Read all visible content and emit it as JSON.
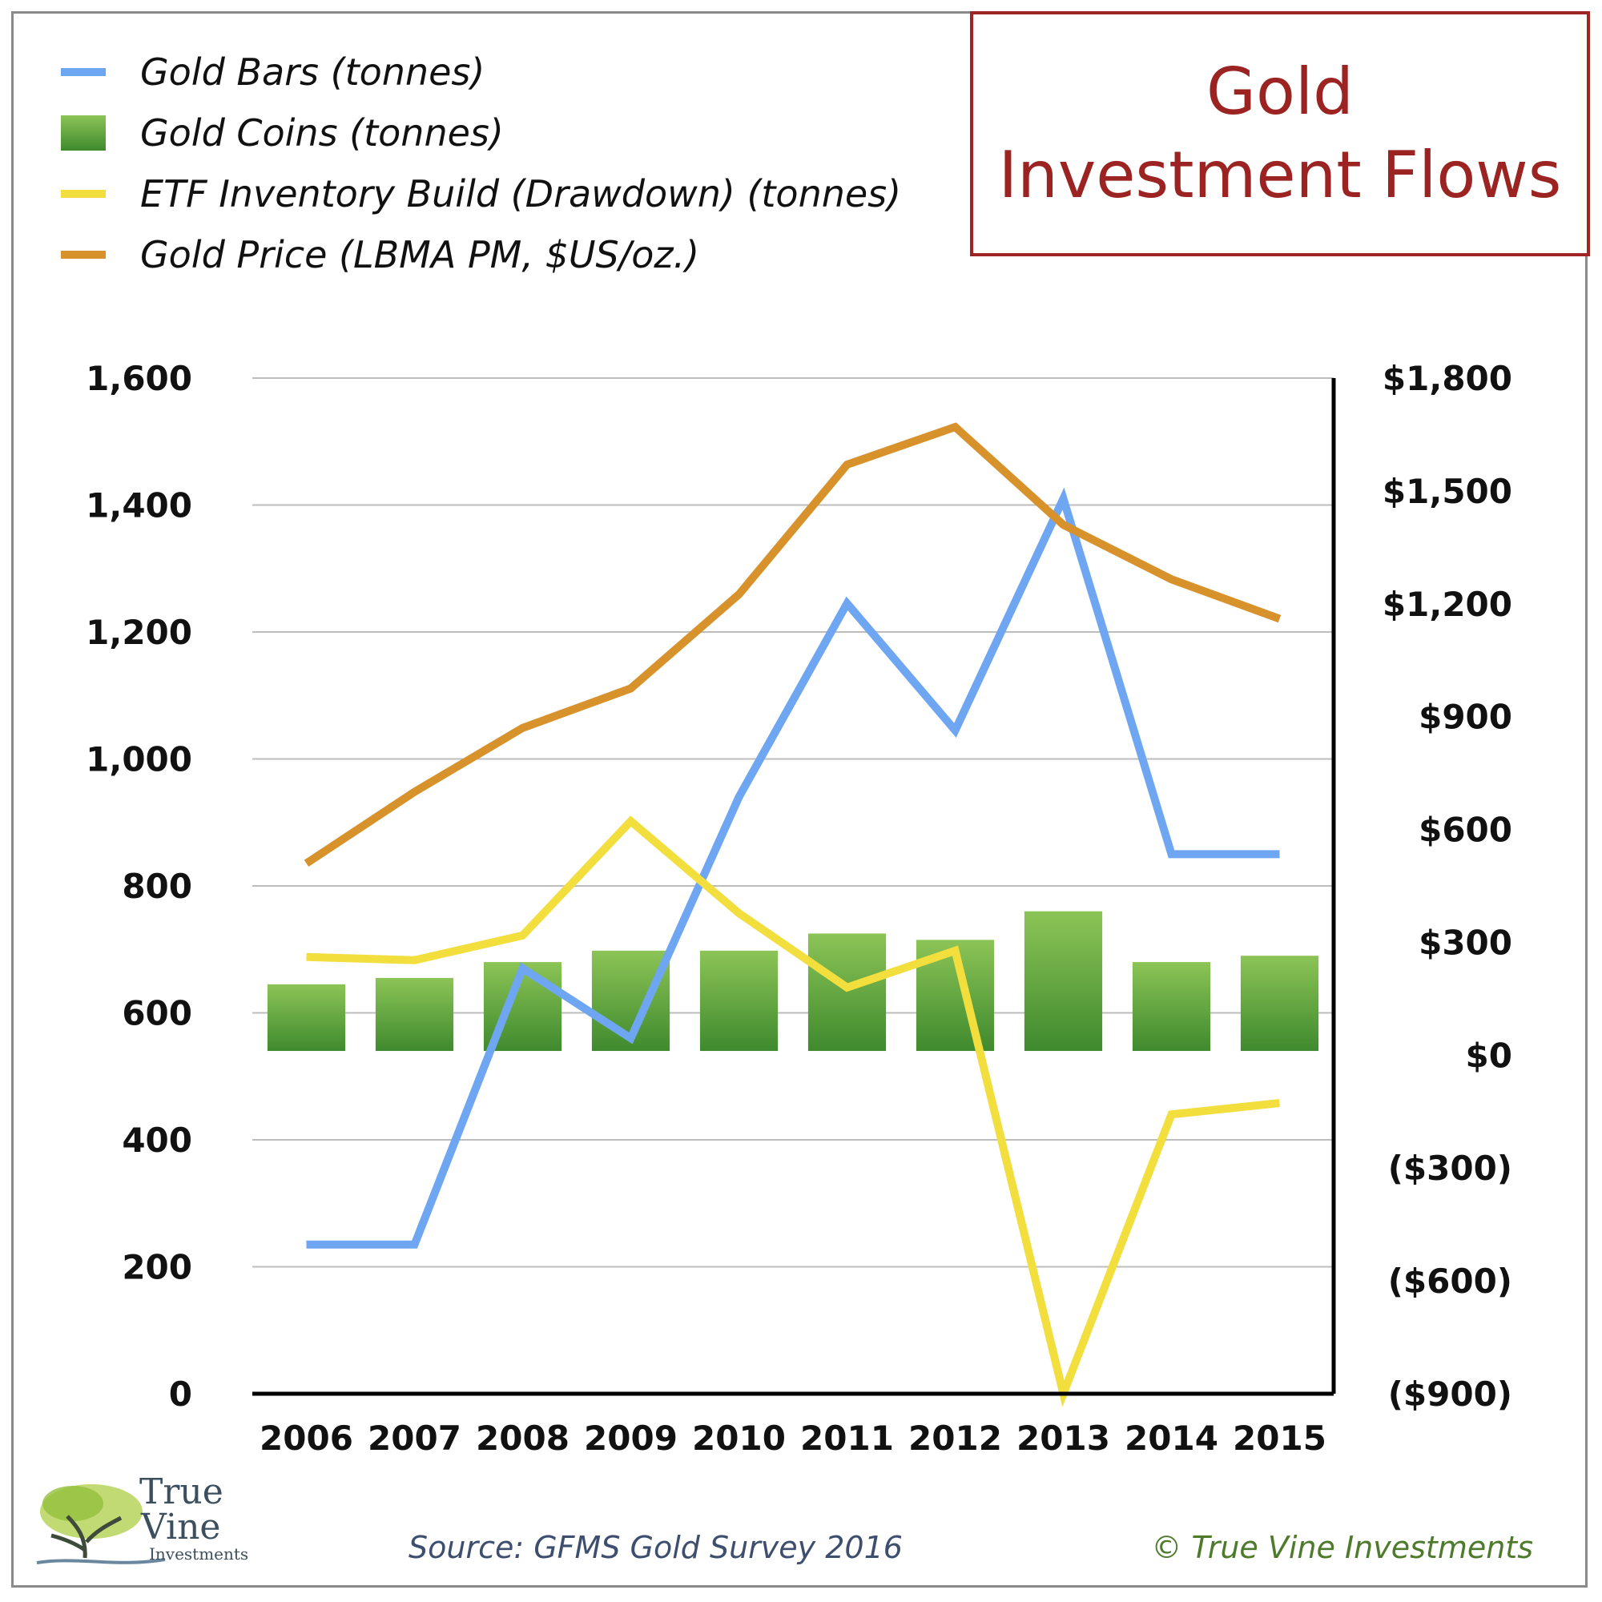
{
  "title": {
    "line1": "Gold",
    "line2": "Investment Flows"
  },
  "legend": [
    {
      "label": "Gold Bars (tonnes)",
      "color": "#6fa6f2",
      "kind": "line"
    },
    {
      "label": "Gold Coins (tonnes)",
      "color": "#5ea53d",
      "kind": "bar"
    },
    {
      "label": "ETF Inventory Build (Drawdown) (tonnes)",
      "color": "#f2de3d",
      "kind": "line"
    },
    {
      "label": "Gold Price (LBMA PM, $US/oz.)",
      "color": "#d8922c",
      "kind": "line"
    }
  ],
  "footer": {
    "source": "Source: GFMS Gold Survey 2016",
    "copyright": "© True Vine Investments"
  },
  "logo": {
    "line1": "True",
    "line2": "Vine",
    "line3": "Investments"
  },
  "chart_data": {
    "type": "bar+line",
    "categories": [
      "2006",
      "2007",
      "2008",
      "2009",
      "2010",
      "2011",
      "2012",
      "2013",
      "2014",
      "2015"
    ],
    "left_axis": {
      "ylim": [
        0,
        1600
      ],
      "ticks": [
        0,
        200,
        400,
        600,
        800,
        1000,
        1200,
        1400,
        1600
      ],
      "tick_labels": [
        "0",
        "200",
        "400",
        "600",
        "800",
        "1,000",
        "1,200",
        "1,400",
        "1,600"
      ]
    },
    "right_axis": {
      "ylim": [
        -900,
        1800
      ],
      "ticks": [
        -900,
        -600,
        -300,
        0,
        300,
        600,
        900,
        1200,
        1500,
        1800
      ],
      "tick_labels": [
        "($900)",
        "($600)",
        "($300)",
        "$0",
        "$300",
        "$600",
        "$900",
        "$1,200",
        "$1,500",
        "$1,800"
      ]
    },
    "grid": true,
    "legend_position": "top-left",
    "series": [
      {
        "name": "Gold Bars (tonnes)",
        "type": "line",
        "axis": "left",
        "color": "#6fa6f2",
        "values": [
          235,
          235,
          670,
          560,
          940,
          1245,
          1045,
          1410,
          850,
          850
        ]
      },
      {
        "name": "Gold Coins (tonnes)",
        "type": "bar",
        "axis": "left",
        "color": "#5ea53d",
        "base": 540,
        "values": [
          645,
          655,
          680,
          698,
          698,
          725,
          715,
          760,
          680,
          690
        ]
      },
      {
        "name": "ETF Inventory Build (Drawdown) (tonnes)",
        "type": "line",
        "axis": "left",
        "color": "#f2de3d",
        "values": [
          688,
          683,
          722,
          902,
          757,
          640,
          698,
          0,
          440,
          458
        ]
      },
      {
        "name": "Gold Price (LBMA PM, $US/oz.)",
        "type": "line",
        "axis": "right",
        "color": "#d8922c",
        "values": [
          510,
          700,
          870,
          975,
          1225,
          1570,
          1670,
          1410,
          1265,
          1160
        ]
      }
    ]
  }
}
